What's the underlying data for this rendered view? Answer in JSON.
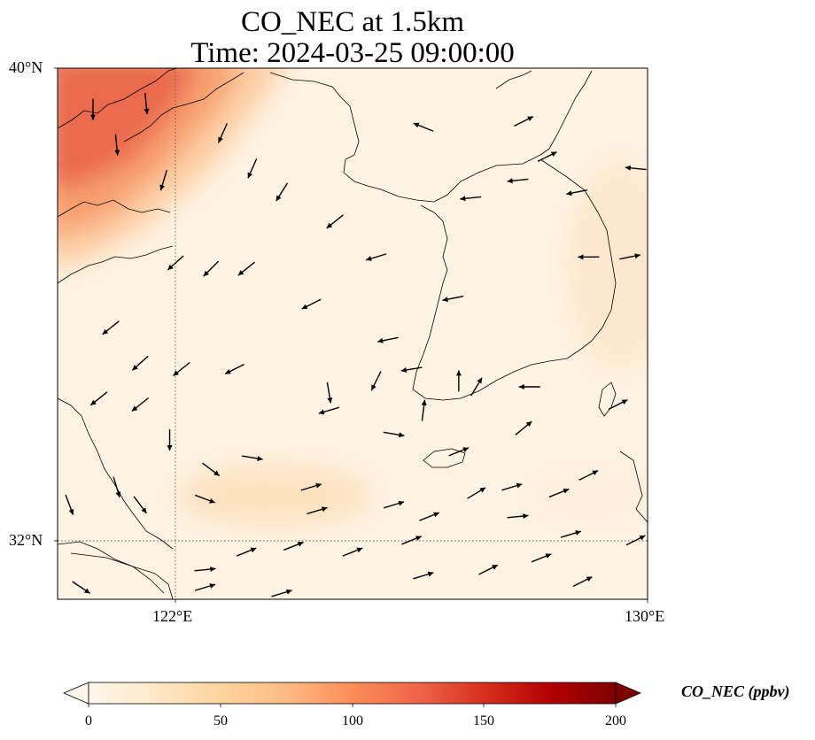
{
  "title_line1": "CO_NEC at 1.5km",
  "title_line2": "Time: 2024-03-25 09:00:00",
  "lat_ticks": [
    "40°N",
    "32°N"
  ],
  "lon_ticks": [
    "122°E",
    "130°E"
  ],
  "extent": {
    "lon": [
      120,
      130
    ],
    "lat": [
      31,
      40
    ]
  },
  "gridlines": {
    "lons": [
      122
    ],
    "lats": [
      32
    ]
  },
  "colorbar": {
    "label": "CO_NEC (ppbv)",
    "ticks": [
      "0",
      "50",
      "100",
      "150",
      "200"
    ],
    "range": [
      0,
      200
    ],
    "extend": "both",
    "cmap": "OrRd",
    "colors": [
      "#fff7ec",
      "#fee8c8",
      "#fdd49e",
      "#fdbb84",
      "#fc8d59",
      "#ef6548",
      "#d7301f",
      "#b30000",
      "#7f0000"
    ]
  },
  "field_summary": "CO concentrations highest (~120 ppbv) in the northwest over Bohai/Liaodong region, low (<30 ppbv) elsewhere with a mild 40–50 ppbv plume over the Yellow Sea near 33°N",
  "wind_vectors": [
    {
      "lon": 120.6,
      "lat": 39.3,
      "u": 0.0,
      "v": -1.0
    },
    {
      "lon": 121.5,
      "lat": 39.4,
      "u": 0.1,
      "v": -1.0
    },
    {
      "lon": 121.0,
      "lat": 38.7,
      "u": 0.1,
      "v": -1.0
    },
    {
      "lon": 121.8,
      "lat": 38.1,
      "u": -0.3,
      "v": -1.0
    },
    {
      "lon": 122.8,
      "lat": 38.9,
      "u": -0.4,
      "v": -0.9
    },
    {
      "lon": 123.3,
      "lat": 38.3,
      "u": -0.4,
      "v": -0.9
    },
    {
      "lon": 123.8,
      "lat": 37.9,
      "u": -0.5,
      "v": -0.8
    },
    {
      "lon": 122.0,
      "lat": 36.7,
      "u": -1.0,
      "v": -0.9
    },
    {
      "lon": 122.6,
      "lat": 36.6,
      "u": -1.0,
      "v": -1.0
    },
    {
      "lon": 123.2,
      "lat": 36.6,
      "u": -1.0,
      "v": -0.8
    },
    {
      "lon": 124.3,
      "lat": 36.0,
      "u": -1.0,
      "v": -0.5
    },
    {
      "lon": 120.9,
      "lat": 35.6,
      "u": -1.0,
      "v": -0.8
    },
    {
      "lon": 121.4,
      "lat": 35.0,
      "u": -1.0,
      "v": -0.9
    },
    {
      "lon": 122.1,
      "lat": 34.9,
      "u": -1.0,
      "v": -0.8
    },
    {
      "lon": 123.0,
      "lat": 34.9,
      "u": -1.0,
      "v": -0.5
    },
    {
      "lon": 120.7,
      "lat": 34.4,
      "u": -1.0,
      "v": -0.8
    },
    {
      "lon": 121.4,
      "lat": 34.3,
      "u": -1.0,
      "v": -0.8
    },
    {
      "lon": 124.6,
      "lat": 34.2,
      "u": -1.0,
      "v": -0.3
    },
    {
      "lon": 125.6,
      "lat": 35.4,
      "u": -1.0,
      "v": -0.2
    },
    {
      "lon": 126.0,
      "lat": 34.9,
      "u": -0.6,
      "v": -0.1
    },
    {
      "lon": 125.4,
      "lat": 36.8,
      "u": -1.0,
      "v": -0.3
    },
    {
      "lon": 124.7,
      "lat": 37.4,
      "u": -1.0,
      "v": -0.8
    },
    {
      "lon": 126.7,
      "lat": 36.1,
      "u": -1.0,
      "v": -0.2
    },
    {
      "lon": 127.0,
      "lat": 37.8,
      "u": -1.0,
      "v": -0.1
    },
    {
      "lon": 127.8,
      "lat": 38.1,
      "u": -1.0,
      "v": -0.1
    },
    {
      "lon": 128.8,
      "lat": 37.9,
      "u": -1.0,
      "v": -0.2
    },
    {
      "lon": 129.0,
      "lat": 36.8,
      "u": -1.0,
      "v": 0.0
    },
    {
      "lon": 129.7,
      "lat": 36.8,
      "u": 1.0,
      "v": 0.2
    },
    {
      "lon": 126.2,
      "lat": 39.0,
      "u": -1.0,
      "v": 0.4
    },
    {
      "lon": 127.9,
      "lat": 39.1,
      "u": 1.0,
      "v": 0.5
    },
    {
      "lon": 128.3,
      "lat": 38.5,
      "u": 1.0,
      "v": 0.5
    },
    {
      "lon": 129.8,
      "lat": 38.3,
      "u": -1.0,
      "v": 0.1
    },
    {
      "lon": 128.0,
      "lat": 34.6,
      "u": -1.0,
      "v": 0.0
    },
    {
      "lon": 129.5,
      "lat": 34.3,
      "u": 1.0,
      "v": 0.5
    },
    {
      "lon": 127.7,
      "lat": 32.9,
      "u": 1.0,
      "v": 0.3
    },
    {
      "lon": 127.1,
      "lat": 32.8,
      "u": 1.0,
      "v": 0.6
    },
    {
      "lon": 126.8,
      "lat": 33.5,
      "u": 1.0,
      "v": 0.4
    },
    {
      "lon": 124.3,
      "lat": 32.9,
      "u": 1.0,
      "v": 0.3
    },
    {
      "lon": 124.4,
      "lat": 32.5,
      "u": 1.0,
      "v": 0.3
    },
    {
      "lon": 125.7,
      "lat": 32.6,
      "u": 1.0,
      "v": 0.3
    },
    {
      "lon": 126.3,
      "lat": 32.4,
      "u": 1.0,
      "v": 0.4
    },
    {
      "lon": 127.8,
      "lat": 32.4,
      "u": 1.0,
      "v": 0.1
    },
    {
      "lon": 128.5,
      "lat": 32.8,
      "u": 1.0,
      "v": 0.4
    },
    {
      "lon": 128.7,
      "lat": 32.1,
      "u": 1.0,
      "v": 0.3
    },
    {
      "lon": 129.0,
      "lat": 33.1,
      "u": 1.0,
      "v": 0.5
    },
    {
      "lon": 129.8,
      "lat": 32.0,
      "u": 1.0,
      "v": 0.5
    },
    {
      "lon": 122.5,
      "lat": 31.5,
      "u": 1.0,
      "v": 0.1
    },
    {
      "lon": 123.2,
      "lat": 31.8,
      "u": 1.0,
      "v": 0.4
    },
    {
      "lon": 124.0,
      "lat": 31.9,
      "u": 1.0,
      "v": 0.4
    },
    {
      "lon": 125.0,
      "lat": 31.8,
      "u": 1.0,
      "v": 0.4
    },
    {
      "lon": 126.0,
      "lat": 32.0,
      "u": 1.0,
      "v": 0.4
    },
    {
      "lon": 126.2,
      "lat": 31.4,
      "u": 1.0,
      "v": 0.3
    },
    {
      "lon": 127.3,
      "lat": 31.5,
      "u": 1.0,
      "v": 0.5
    },
    {
      "lon": 128.2,
      "lat": 31.7,
      "u": 1.0,
      "v": 0.4
    },
    {
      "lon": 128.9,
      "lat": 31.3,
      "u": 1.0,
      "v": 0.5
    },
    {
      "lon": 122.5,
      "lat": 31.2,
      "u": 1.0,
      "v": 0.3
    },
    {
      "lon": 123.8,
      "lat": 31.1,
      "u": 1.0,
      "v": 0.3
    },
    {
      "lon": 120.4,
      "lat": 31.2,
      "u": 0.9,
      "v": -0.6
    },
    {
      "lon": 120.2,
      "lat": 32.6,
      "u": 0.3,
      "v": -0.8
    },
    {
      "lon": 121.0,
      "lat": 32.9,
      "u": 0.3,
      "v": -1.0
    },
    {
      "lon": 121.4,
      "lat": 32.6,
      "u": 0.6,
      "v": -0.8
    },
    {
      "lon": 122.6,
      "lat": 33.2,
      "u": 0.4,
      "v": -0.3
    },
    {
      "lon": 122.5,
      "lat": 32.7,
      "u": 0.8,
      "v": -0.3
    },
    {
      "lon": 123.3,
      "lat": 33.4,
      "u": 0.6,
      "v": -0.1
    },
    {
      "lon": 125.7,
      "lat": 33.8,
      "u": 0.6,
      "v": -0.1
    },
    {
      "lon": 121.9,
      "lat": 33.7,
      "u": 0.0,
      "v": -1.0
    },
    {
      "lon": 124.6,
      "lat": 34.5,
      "u": 0.1,
      "v": -0.6
    },
    {
      "lon": 125.4,
      "lat": 34.7,
      "u": -0.3,
      "v": -0.6
    },
    {
      "lon": 126.8,
      "lat": 34.7,
      "u": 0.0,
      "v": 1.0
    },
    {
      "lon": 127.1,
      "lat": 34.6,
      "u": 0.6,
      "v": 1.0
    },
    {
      "lon": 127.9,
      "lat": 33.9,
      "u": 0.6,
      "v": 0.5
    },
    {
      "lon": 126.2,
      "lat": 34.2,
      "u": 0.1,
      "v": 0.8
    }
  ]
}
